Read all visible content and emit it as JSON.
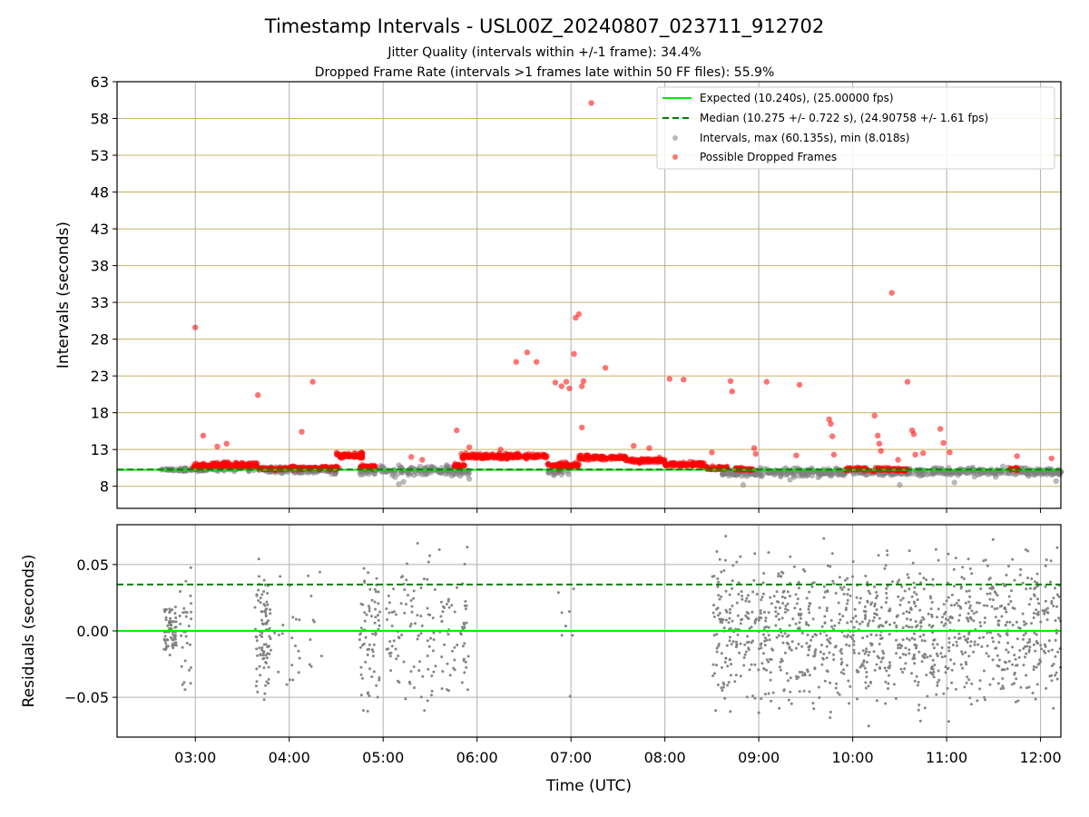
{
  "title": "Timestamp Intervals - USL00Z_20240807_023711_912702",
  "subtitle_line1": "Jitter Quality (intervals within +/-1 frame): 34.4%",
  "subtitle_line2": "Dropped Frame Rate (intervals >1 frames late within 50 FF files): 55.9%",
  "colors": {
    "expected": "#00ee00",
    "median": "#008000",
    "intervals": "#808080",
    "dropped": "#ff0000",
    "hgrid": "#c8b464",
    "vgrid": "#b0b0b0"
  },
  "chart_data": [
    {
      "type": "scatter",
      "ylabel": "Intervals (seconds)",
      "xlim": [
        "02:10",
        "12:13"
      ],
      "ylim": [
        5,
        63
      ],
      "yticks": [
        8,
        13,
        18,
        23,
        28,
        33,
        38,
        43,
        48,
        53,
        58,
        63
      ],
      "xticks": [
        "03:00",
        "04:00",
        "05:00",
        "06:00",
        "07:00",
        "08:00",
        "09:00",
        "10:00",
        "11:00",
        "12:00"
      ],
      "grid": true,
      "legend_position": "top-right",
      "expected_interval": 10.24,
      "median_interval": 10.275,
      "legend": [
        "Expected (10.240s), (25.00000 fps)",
        "Median (10.275 +/- 0.722 s), (24.90758 +/- 1.61 fps)",
        "Intervals, max (60.135s), min (8.018s)",
        "Possible Dropped Frames"
      ],
      "series": [
        {
          "name": "Intervals, max (60.135s), min (8.018s)",
          "color": "#808080",
          "segments": [
            {
              "start": "02:38",
              "end": "03:05",
              "center": 10.25,
              "spread": 0.25,
              "n": 60
            },
            {
              "start": "03:05",
              "end": "03:45",
              "center": 10.3,
              "spread": 0.35,
              "n": 40
            },
            {
              "start": "03:45",
              "end": "04:30",
              "center": 10.2,
              "spread": 0.6,
              "n": 120
            },
            {
              "start": "04:45",
              "end": "05:55",
              "center": 10.1,
              "spread": 0.9,
              "n": 160
            },
            {
              "start": "06:45",
              "end": "07:00",
              "center": 10.0,
              "spread": 0.6,
              "n": 30
            },
            {
              "start": "08:35",
              "end": "09:55",
              "center": 9.9,
              "spread": 0.8,
              "n": 220
            },
            {
              "start": "09:55",
              "end": "12:13",
              "center": 10.0,
              "spread": 0.8,
              "n": 300
            }
          ],
          "points": [
            {
              "x": "05:10",
              "y": 8.3
            },
            {
              "x": "05:13",
              "y": 8.6
            },
            {
              "x": "05:55",
              "y": 9.0
            },
            {
              "x": "08:50",
              "y": 8.2
            },
            {
              "x": "09:20",
              "y": 8.9
            },
            {
              "x": "10:30",
              "y": 8.2
            },
            {
              "x": "11:05",
              "y": 8.5
            },
            {
              "x": "12:10",
              "y": 8.7
            }
          ]
        },
        {
          "name": "Possible Dropped Frames",
          "color": "#ff0000",
          "segments": [
            {
              "start": "02:58",
              "end": "03:08",
              "center": 10.7,
              "spread": 0.6,
              "n": 40
            },
            {
              "start": "03:08",
              "end": "03:40",
              "center": 10.9,
              "spread": 0.5,
              "n": 110
            },
            {
              "start": "03:40",
              "end": "03:57",
              "center": 10.4,
              "spread": 0.3,
              "n": 40
            },
            {
              "start": "03:57",
              "end": "04:32",
              "center": 10.5,
              "spread": 0.35,
              "n": 90
            },
            {
              "start": "04:30",
              "end": "04:47",
              "center": 12.2,
              "spread": 0.5,
              "n": 70
            },
            {
              "start": "04:45",
              "end": "04:55",
              "center": 10.6,
              "spread": 0.4,
              "n": 40
            },
            {
              "start": "05:45",
              "end": "05:52",
              "center": 10.8,
              "spread": 0.5,
              "n": 20
            },
            {
              "start": "05:50",
              "end": "06:45",
              "center": 12.1,
              "spread": 0.5,
              "n": 180
            },
            {
              "start": "06:45",
              "end": "07:05",
              "center": 10.8,
              "spread": 0.6,
              "n": 60
            },
            {
              "start": "07:05",
              "end": "07:35",
              "center": 11.9,
              "spread": 0.45,
              "n": 90
            },
            {
              "start": "07:35",
              "end": "08:00",
              "center": 11.5,
              "spread": 0.45,
              "n": 80
            },
            {
              "start": "08:00",
              "end": "08:25",
              "center": 11.0,
              "spread": 0.4,
              "n": 80
            },
            {
              "start": "08:25",
              "end": "08:40",
              "center": 10.5,
              "spread": 0.35,
              "n": 40
            },
            {
              "start": "08:45",
              "end": "08:57",
              "center": 10.3,
              "spread": 0.3,
              "n": 30
            },
            {
              "start": "09:55",
              "end": "10:35",
              "center": 10.3,
              "spread": 0.4,
              "n": 80
            },
            {
              "start": "11:40",
              "end": "11:46",
              "center": 10.4,
              "spread": 0.3,
              "n": 12
            }
          ],
          "points": [
            {
              "x": "03:00",
              "y": 29.6
            },
            {
              "x": "03:05",
              "y": 14.9
            },
            {
              "x": "03:14",
              "y": 13.4
            },
            {
              "x": "03:20",
              "y": 13.8
            },
            {
              "x": "03:40",
              "y": 20.4
            },
            {
              "x": "04:08",
              "y": 15.4
            },
            {
              "x": "04:15",
              "y": 22.2
            },
            {
              "x": "05:18",
              "y": 12.0
            },
            {
              "x": "05:25",
              "y": 11.6
            },
            {
              "x": "05:47",
              "y": 15.6
            },
            {
              "x": "05:50",
              "y": 12.4
            },
            {
              "x": "05:55",
              "y": 13.3
            },
            {
              "x": "06:15",
              "y": 13.0
            },
            {
              "x": "06:25",
              "y": 24.9
            },
            {
              "x": "06:32",
              "y": 26.2
            },
            {
              "x": "06:38",
              "y": 24.9
            },
            {
              "x": "06:50",
              "y": 22.1
            },
            {
              "x": "06:54",
              "y": 21.6
            },
            {
              "x": "06:57",
              "y": 22.2
            },
            {
              "x": "06:59",
              "y": 21.3
            },
            {
              "x": "07:02",
              "y": 26.0
            },
            {
              "x": "07:03",
              "y": 30.9
            },
            {
              "x": "07:05",
              "y": 31.4
            },
            {
              "x": "07:07",
              "y": 21.6
            },
            {
              "x": "07:07",
              "y": 16.0
            },
            {
              "x": "07:08",
              "y": 22.3
            },
            {
              "x": "07:13",
              "y": 60.1
            },
            {
              "x": "07:22",
              "y": 24.1
            },
            {
              "x": "07:40",
              "y": 13.5
            },
            {
              "x": "07:50",
              "y": 13.2
            },
            {
              "x": "08:03",
              "y": 22.6
            },
            {
              "x": "08:12",
              "y": 22.5
            },
            {
              "x": "08:30",
              "y": 12.6
            },
            {
              "x": "08:42",
              "y": 22.3
            },
            {
              "x": "08:43",
              "y": 20.9
            },
            {
              "x": "09:05",
              "y": 22.2
            },
            {
              "x": "09:26",
              "y": 21.8
            },
            {
              "x": "08:57",
              "y": 13.2
            },
            {
              "x": "08:58",
              "y": 12.4
            },
            {
              "x": "09:45",
              "y": 17.1
            },
            {
              "x": "09:46",
              "y": 16.5
            },
            {
              "x": "09:47",
              "y": 14.8
            },
            {
              "x": "09:48",
              "y": 12.3
            },
            {
              "x": "09:24",
              "y": 12.2
            },
            {
              "x": "10:14",
              "y": 17.6
            },
            {
              "x": "10:16",
              "y": 14.9
            },
            {
              "x": "10:17",
              "y": 13.8
            },
            {
              "x": "10:18",
              "y": 12.8
            },
            {
              "x": "10:25",
              "y": 34.3
            },
            {
              "x": "10:35",
              "y": 22.2
            },
            {
              "x": "10:38",
              "y": 15.6
            },
            {
              "x": "10:39",
              "y": 15.1
            },
            {
              "x": "10:40",
              "y": 12.3
            },
            {
              "x": "10:45",
              "y": 12.5
            },
            {
              "x": "10:56",
              "y": 15.8
            },
            {
              "x": "10:58",
              "y": 13.9
            },
            {
              "x": "11:02",
              "y": 12.6
            },
            {
              "x": "11:45",
              "y": 12.1
            },
            {
              "x": "12:07",
              "y": 11.8
            },
            {
              "x": "10:29",
              "y": 11.6
            }
          ]
        }
      ]
    },
    {
      "type": "scatter",
      "xlabel": "Time (UTC)",
      "ylabel": "Residuals (seconds)",
      "xlim": [
        "02:10",
        "12:13"
      ],
      "ylim": [
        -0.08,
        0.08
      ],
      "yticks": [
        -0.05,
        0.0,
        0.05
      ],
      "ytick_labels": [
        "−0.05",
        "0.00",
        "0.05"
      ],
      "xticks": [
        "03:00",
        "04:00",
        "05:00",
        "06:00",
        "07:00",
        "08:00",
        "09:00",
        "10:00",
        "11:00",
        "12:00"
      ],
      "grid": true,
      "expected_residual": 0.0,
      "median_residual": 0.035,
      "series": [
        {
          "name": "Residuals",
          "color": "#808080",
          "segments": [
            {
              "start": "02:40",
              "end": "02:48",
              "center": 0.0,
              "spread": 0.03,
              "n": 70
            },
            {
              "start": "02:50",
              "end": "02:58",
              "center": 0.0,
              "spread": 0.06,
              "n": 30
            },
            {
              "start": "03:38",
              "end": "03:48",
              "center": 0.0,
              "spread": 0.07,
              "n": 90
            },
            {
              "start": "03:48",
              "end": "04:25",
              "center": 0.0,
              "spread": 0.08,
              "n": 30
            },
            {
              "start": "04:45",
              "end": "04:58",
              "center": 0.0,
              "spread": 0.08,
              "n": 70
            },
            {
              "start": "05:02",
              "end": "05:55",
              "center": 0.0,
              "spread": 0.08,
              "n": 150
            },
            {
              "start": "06:52",
              "end": "07:02",
              "center": 0.0,
              "spread": 0.08,
              "n": 8
            },
            {
              "start": "08:30",
              "end": "12:13",
              "center": 0.0,
              "spread": 0.08,
              "n": 1100
            }
          ]
        }
      ]
    }
  ]
}
